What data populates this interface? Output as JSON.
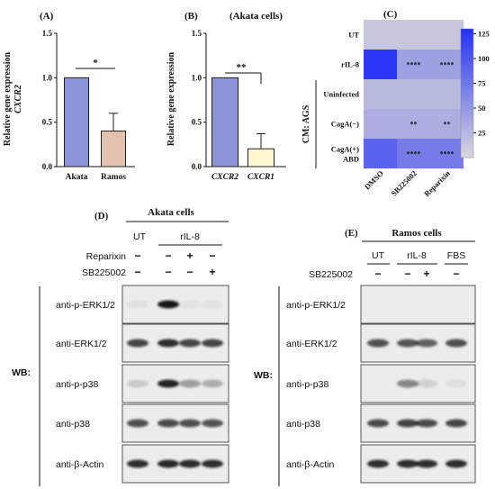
{
  "panel_a": {
    "label": "(A)",
    "ylabel_line1": "Relative gene expression",
    "ylabel_line2": "CXCR2",
    "significance": "*",
    "chart_data": {
      "type": "bar",
      "categories": [
        "Akata",
        "Ramos"
      ],
      "values": [
        1.0,
        0.4
      ],
      "errors": [
        0.0,
        0.2
      ],
      "ylim": [
        0,
        1.5
      ],
      "yticks": [
        "0.0",
        "0.5",
        "1.0",
        "1.5"
      ],
      "colors": [
        "#8c94d6",
        "#e2c2ae"
      ]
    }
  },
  "panel_b": {
    "label": "(B)",
    "title": "(Akata cells)",
    "ylabel": "Relative gene expression",
    "significance": "**",
    "chart_data": {
      "type": "bar",
      "categories": [
        "CXCR2",
        "CXCR1"
      ],
      "values": [
        1.0,
        0.2
      ],
      "errors": [
        0.0,
        0.17
      ],
      "ylim": [
        0,
        1.5
      ],
      "yticks": [
        "0.0",
        "0.5",
        "1.0",
        "1.5"
      ],
      "colors": [
        "#8c94d6",
        "#fdf8d0"
      ]
    }
  },
  "panel_c": {
    "label": "(C)",
    "group_label": "CM: AGS",
    "chart_data": {
      "type": "heatmap",
      "rows": [
        "UT",
        "rIL-8",
        "Uninfected",
        "CagA(−)",
        "CagA(+) ABD"
      ],
      "columns": [
        "DMSO",
        "SB225002",
        "Reparixin"
      ],
      "values": [
        [
          10,
          10,
          10
        ],
        [
          125,
          40,
          40
        ],
        [
          20,
          20,
          20
        ],
        [
          30,
          30,
          30
        ],
        [
          90,
          70,
          70
        ]
      ],
      "annotations": [
        [
          "",
          "",
          ""
        ],
        [
          "",
          "****",
          "****"
        ],
        [
          "",
          "",
          ""
        ],
        [
          "",
          "**",
          "**"
        ],
        [
          "",
          "****",
          "****"
        ]
      ],
      "colorbar_ticks": [
        "25",
        "50",
        "75",
        "100",
        "125"
      ],
      "colorbar_range": [
        0,
        130
      ],
      "color_low": "#d3d3d8",
      "color_high": "#2431f5"
    }
  },
  "panel_d": {
    "label": "(D)",
    "cell_header": "Akata cells",
    "group_ut": "UT",
    "group_ril8": "rIL-8",
    "treatments": [
      {
        "label": "Reparixin",
        "signs": [
          "−",
          "−",
          "+",
          "−"
        ]
      },
      {
        "label": "SB225002",
        "signs": [
          "−",
          "−",
          "−",
          "+"
        ]
      }
    ],
    "wb_label": "WB:",
    "blots": [
      "anti-p-ERK1/2",
      "anti-ERK1/2",
      "anti-p-p38",
      "anti-p38",
      "anti-β-Actin"
    ]
  },
  "panel_e": {
    "label": "(E)",
    "cell_header": "Ramos cells",
    "group_ut": "UT",
    "group_ril8": "rIL-8",
    "group_fbs": "FBS",
    "treatments": [
      {
        "label": "SB225002",
        "signs": [
          "−",
          "−",
          "+",
          "−"
        ]
      }
    ],
    "wb_label": "WB:",
    "blots": [
      "anti-p-ERK1/2",
      "anti-ERK1/2",
      "anti-p-p38",
      "anti-p38",
      "anti-β-Actin"
    ]
  }
}
